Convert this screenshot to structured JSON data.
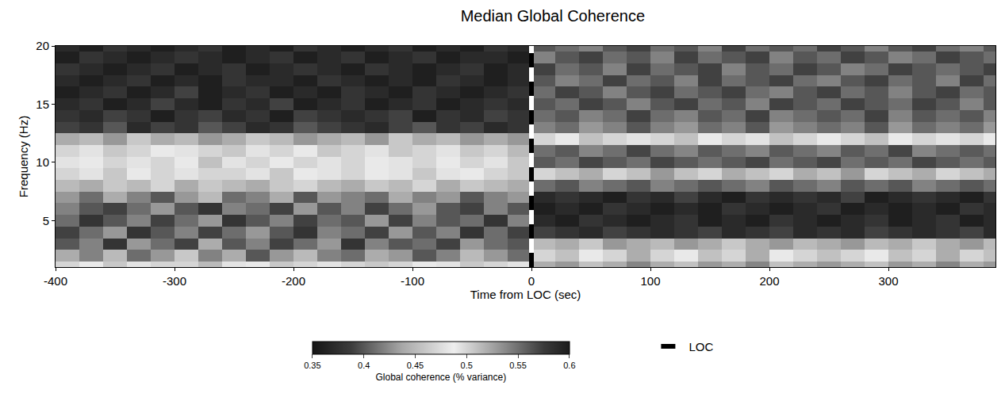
{
  "chart_data": {
    "type": "heatmap",
    "title": "Median Global Coherence",
    "x_label": "Time from LOC (sec)",
    "y_label": "Frequency (Hz)",
    "x": [
      -390,
      -370,
      -350,
      -330,
      -310,
      -290,
      -270,
      -250,
      -230,
      -210,
      -190,
      -170,
      -150,
      -130,
      -110,
      -90,
      -70,
      -50,
      -30,
      -10,
      10,
      30,
      50,
      70,
      90,
      110,
      130,
      150,
      170,
      190,
      210,
      230,
      250,
      270,
      290,
      310,
      330,
      350,
      370,
      390
    ],
    "y": [
      1,
      2,
      3,
      4,
      5,
      6,
      7,
      8,
      9,
      10,
      11,
      12,
      13,
      14,
      15,
      16,
      17,
      18,
      19,
      20
    ],
    "z": [
      [
        0.47,
        0.49,
        0.46,
        0.48,
        0.5,
        0.47,
        0.45,
        0.48,
        0.49,
        0.46,
        0.47,
        0.48,
        0.5,
        0.46,
        0.47,
        0.49,
        0.48,
        0.46,
        0.47,
        0.48,
        0.52,
        0.53,
        0.51,
        0.52,
        0.54,
        0.52,
        0.51,
        0.53,
        0.52,
        0.54,
        0.51,
        0.52,
        0.53,
        0.52,
        0.51,
        0.53,
        0.52,
        0.54,
        0.52,
        0.53
      ],
      [
        0.44,
        0.42,
        0.45,
        0.41,
        0.43,
        0.46,
        0.42,
        0.44,
        0.4,
        0.43,
        0.45,
        0.42,
        0.41,
        0.44,
        0.43,
        0.4,
        0.42,
        0.45,
        0.43,
        0.41,
        0.5,
        0.51,
        0.49,
        0.5,
        0.52,
        0.5,
        0.49,
        0.51,
        0.5,
        0.52,
        0.49,
        0.5,
        0.51,
        0.5,
        0.49,
        0.51,
        0.5,
        0.52,
        0.5,
        0.51
      ],
      [
        0.4,
        0.42,
        0.38,
        0.43,
        0.41,
        0.39,
        0.44,
        0.4,
        0.42,
        0.39,
        0.41,
        0.43,
        0.38,
        0.42,
        0.4,
        0.41,
        0.39,
        0.43,
        0.41,
        0.4,
        0.45,
        0.44,
        0.46,
        0.43,
        0.44,
        0.45,
        0.43,
        0.44,
        0.46,
        0.44,
        0.43,
        0.45,
        0.44,
        0.43,
        0.45,
        0.44,
        0.46,
        0.44,
        0.43,
        0.45
      ],
      [
        0.39,
        0.41,
        0.43,
        0.38,
        0.4,
        0.42,
        0.39,
        0.41,
        0.43,
        0.4,
        0.38,
        0.42,
        0.41,
        0.39,
        0.43,
        0.4,
        0.42,
        0.38,
        0.41,
        0.39,
        0.39,
        0.38,
        0.37,
        0.39,
        0.38,
        0.37,
        0.38,
        0.39,
        0.37,
        0.38,
        0.39,
        0.37,
        0.38,
        0.37,
        0.39,
        0.38,
        0.37,
        0.38,
        0.39,
        0.37
      ],
      [
        0.41,
        0.38,
        0.4,
        0.42,
        0.39,
        0.41,
        0.43,
        0.38,
        0.4,
        0.42,
        0.39,
        0.41,
        0.4,
        0.43,
        0.39,
        0.42,
        0.4,
        0.41,
        0.38,
        0.42,
        0.37,
        0.36,
        0.38,
        0.37,
        0.36,
        0.37,
        0.38,
        0.36,
        0.37,
        0.36,
        0.38,
        0.37,
        0.36,
        0.37,
        0.38,
        0.36,
        0.37,
        0.38,
        0.36,
        0.37
      ],
      [
        0.42,
        0.4,
        0.39,
        0.41,
        0.43,
        0.4,
        0.38,
        0.42,
        0.41,
        0.39,
        0.43,
        0.4,
        0.42,
        0.39,
        0.41,
        0.43,
        0.4,
        0.39,
        0.42,
        0.4,
        0.36,
        0.37,
        0.36,
        0.38,
        0.37,
        0.36,
        0.37,
        0.36,
        0.38,
        0.37,
        0.36,
        0.37,
        0.38,
        0.36,
        0.37,
        0.36,
        0.37,
        0.36,
        0.38,
        0.37
      ],
      [
        0.43,
        0.41,
        0.44,
        0.42,
        0.4,
        0.43,
        0.45,
        0.41,
        0.42,
        0.44,
        0.4,
        0.43,
        0.42,
        0.41,
        0.44,
        0.42,
        0.43,
        0.4,
        0.42,
        0.43,
        0.37,
        0.38,
        0.37,
        0.36,
        0.38,
        0.37,
        0.39,
        0.37,
        0.36,
        0.38,
        0.37,
        0.38,
        0.37,
        0.39,
        0.36,
        0.37,
        0.38,
        0.37,
        0.36,
        0.38
      ],
      [
        0.45,
        0.44,
        0.46,
        0.45,
        0.47,
        0.44,
        0.46,
        0.45,
        0.44,
        0.46,
        0.47,
        0.45,
        0.44,
        0.46,
        0.45,
        0.47,
        0.44,
        0.46,
        0.45,
        0.44,
        0.41,
        0.4,
        0.42,
        0.41,
        0.4,
        0.42,
        0.41,
        0.4,
        0.41,
        0.42,
        0.4,
        0.41,
        0.42,
        0.4,
        0.41,
        0.4,
        0.42,
        0.41,
        0.4,
        0.41
      ],
      [
        0.47,
        0.48,
        0.46,
        0.49,
        0.47,
        0.48,
        0.5,
        0.47,
        0.48,
        0.46,
        0.49,
        0.48,
        0.47,
        0.49,
        0.48,
        0.46,
        0.48,
        0.49,
        0.47,
        0.46,
        0.5,
        0.51,
        0.52,
        0.5,
        0.51,
        0.53,
        0.51,
        0.5,
        0.52,
        0.51,
        0.5,
        0.52,
        0.51,
        0.53,
        0.5,
        0.51,
        0.52,
        0.5,
        0.51,
        0.52
      ],
      [
        0.48,
        0.49,
        0.5,
        0.48,
        0.47,
        0.49,
        0.51,
        0.48,
        0.5,
        0.49,
        0.47,
        0.48,
        0.5,
        0.49,
        0.48,
        0.47,
        0.49,
        0.5,
        0.48,
        0.46,
        0.56,
        0.55,
        0.57,
        0.56,
        0.55,
        0.57,
        0.56,
        0.55,
        0.56,
        0.57,
        0.55,
        0.56,
        0.57,
        0.55,
        0.56,
        0.55,
        0.57,
        0.56,
        0.55,
        0.56
      ],
      [
        0.47,
        0.48,
        0.46,
        0.47,
        0.49,
        0.48,
        0.47,
        0.46,
        0.48,
        0.47,
        0.49,
        0.46,
        0.47,
        0.48,
        0.46,
        0.47,
        0.48,
        0.46,
        0.47,
        0.45,
        0.55,
        0.56,
        0.54,
        0.55,
        0.57,
        0.55,
        0.54,
        0.56,
        0.55,
        0.54,
        0.56,
        0.55,
        0.54,
        0.56,
        0.55,
        0.57,
        0.54,
        0.55,
        0.56,
        0.55
      ],
      [
        0.44,
        0.45,
        0.43,
        0.46,
        0.44,
        0.45,
        0.43,
        0.44,
        0.46,
        0.45,
        0.43,
        0.44,
        0.45,
        0.43,
        0.46,
        0.44,
        0.45,
        0.43,
        0.44,
        0.43,
        0.5,
        0.49,
        0.51,
        0.5,
        0.48,
        0.5,
        0.51,
        0.49,
        0.5,
        0.48,
        0.51,
        0.5,
        0.49,
        0.5,
        0.51,
        0.49,
        0.5,
        0.48,
        0.5,
        0.49
      ],
      [
        0.39,
        0.38,
        0.4,
        0.37,
        0.39,
        0.38,
        0.4,
        0.39,
        0.37,
        0.38,
        0.4,
        0.39,
        0.38,
        0.37,
        0.39,
        0.4,
        0.38,
        0.39,
        0.37,
        0.38,
        0.42,
        0.41,
        0.43,
        0.42,
        0.4,
        0.42,
        0.43,
        0.41,
        0.42,
        0.4,
        0.43,
        0.42,
        0.41,
        0.42,
        0.4,
        0.43,
        0.41,
        0.42,
        0.41,
        0.43
      ],
      [
        0.38,
        0.37,
        0.39,
        0.38,
        0.36,
        0.38,
        0.39,
        0.37,
        0.38,
        0.36,
        0.39,
        0.38,
        0.37,
        0.38,
        0.39,
        0.36,
        0.38,
        0.37,
        0.39,
        0.38,
        0.41,
        0.4,
        0.42,
        0.41,
        0.39,
        0.41,
        0.42,
        0.4,
        0.41,
        0.39,
        0.42,
        0.41,
        0.4,
        0.41,
        0.39,
        0.42,
        0.4,
        0.41,
        0.4,
        0.42
      ],
      [
        0.37,
        0.38,
        0.36,
        0.37,
        0.39,
        0.37,
        0.36,
        0.38,
        0.37,
        0.39,
        0.36,
        0.37,
        0.38,
        0.36,
        0.37,
        0.38,
        0.36,
        0.37,
        0.38,
        0.37,
        0.4,
        0.41,
        0.39,
        0.4,
        0.42,
        0.4,
        0.39,
        0.41,
        0.4,
        0.42,
        0.39,
        0.4,
        0.41,
        0.39,
        0.4,
        0.41,
        0.39,
        0.4,
        0.42,
        0.4
      ],
      [
        0.36,
        0.37,
        0.38,
        0.36,
        0.37,
        0.39,
        0.36,
        0.37,
        0.38,
        0.36,
        0.37,
        0.36,
        0.38,
        0.37,
        0.36,
        0.38,
        0.37,
        0.36,
        0.37,
        0.38,
        0.41,
        0.39,
        0.4,
        0.42,
        0.4,
        0.39,
        0.41,
        0.4,
        0.39,
        0.41,
        0.42,
        0.4,
        0.39,
        0.41,
        0.4,
        0.42,
        0.4,
        0.39,
        0.41,
        0.4
      ],
      [
        0.37,
        0.36,
        0.37,
        0.38,
        0.36,
        0.37,
        0.36,
        0.38,
        0.37,
        0.37,
        0.36,
        0.38,
        0.37,
        0.36,
        0.37,
        0.36,
        0.38,
        0.37,
        0.36,
        0.37,
        0.4,
        0.42,
        0.41,
        0.39,
        0.41,
        0.4,
        0.42,
        0.39,
        0.41,
        0.4,
        0.39,
        0.41,
        0.42,
        0.4,
        0.39,
        0.41,
        0.4,
        0.42,
        0.39,
        0.41
      ],
      [
        0.38,
        0.37,
        0.36,
        0.37,
        0.38,
        0.36,
        0.37,
        0.38,
        0.36,
        0.37,
        0.38,
        0.37,
        0.36,
        0.38,
        0.37,
        0.36,
        0.37,
        0.38,
        0.36,
        0.37,
        0.39,
        0.41,
        0.4,
        0.42,
        0.39,
        0.41,
        0.4,
        0.39,
        0.42,
        0.4,
        0.41,
        0.39,
        0.4,
        0.42,
        0.41,
        0.39,
        0.4,
        0.41,
        0.4,
        0.39
      ],
      [
        0.36,
        0.38,
        0.37,
        0.36,
        0.37,
        0.38,
        0.37,
        0.36,
        0.37,
        0.38,
        0.36,
        0.37,
        0.38,
        0.36,
        0.37,
        0.38,
        0.36,
        0.37,
        0.37,
        0.36,
        0.42,
        0.4,
        0.39,
        0.41,
        0.4,
        0.42,
        0.39,
        0.41,
        0.4,
        0.39,
        0.42,
        0.4,
        0.41,
        0.39,
        0.4,
        0.42,
        0.41,
        0.39,
        0.4,
        0.41
      ],
      [
        0.37,
        0.36,
        0.38,
        0.37,
        0.36,
        0.37,
        0.38,
        0.36,
        0.37,
        0.36,
        0.38,
        0.37,
        0.36,
        0.37,
        0.38,
        0.36,
        0.37,
        0.36,
        0.38,
        0.37,
        0.4,
        0.41,
        0.42,
        0.4,
        0.39,
        0.41,
        0.4,
        0.42,
        0.39,
        0.41,
        0.4,
        0.41,
        0.39,
        0.4,
        0.42,
        0.4,
        0.39,
        0.41,
        0.42,
        0.4
      ]
    ],
    "xlim": [
      -400,
      390
    ],
    "ylim": [
      1,
      20
    ],
    "xticks": [
      -400,
      -300,
      -200,
      -100,
      0,
      100,
      200,
      300
    ],
    "yticks": [
      5,
      10,
      15,
      20
    ],
    "colorbar": {
      "label": "Global coherence (% variance)",
      "range": [
        0.35,
        0.6
      ],
      "ticks": [
        0.35,
        0.4,
        0.45,
        0.5,
        0.55,
        0.6
      ]
    },
    "lines": [
      {
        "name": "LOC",
        "x": 0,
        "line_style": "dash",
        "color": "#000000"
      }
    ]
  }
}
